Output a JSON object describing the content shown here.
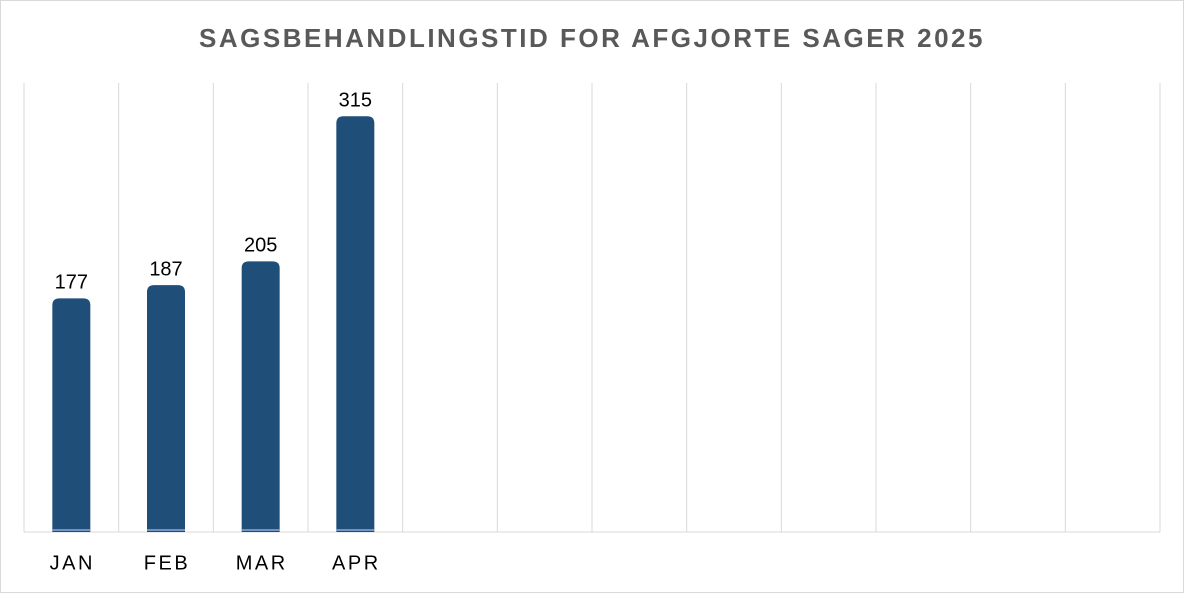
{
  "chart_data": {
    "type": "bar",
    "title": "SAGSBEHANDLINGSTID FOR AFGJORTE SAGER 2025",
    "categories": [
      "JAN",
      "FEB",
      "MAR",
      "APR",
      null,
      null,
      null,
      null,
      null,
      null,
      null,
      null
    ],
    "values": [
      177,
      187,
      205,
      315,
      null,
      null,
      null,
      null,
      null,
      null,
      null,
      null
    ],
    "color": "#1f4e79",
    "grid": true
  }
}
